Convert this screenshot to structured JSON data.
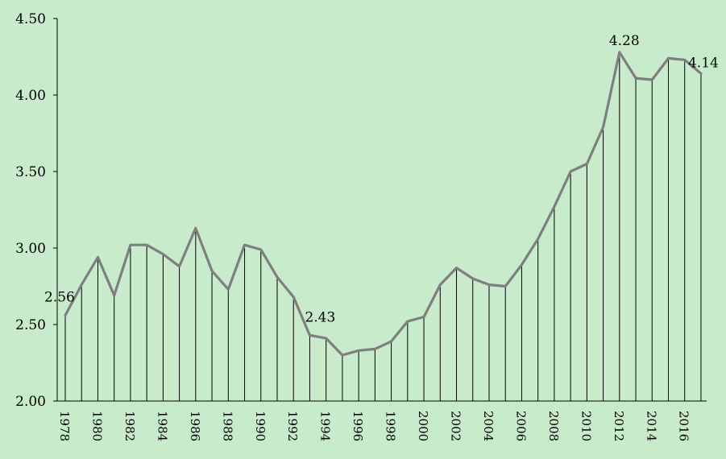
{
  "chart_data": {
    "type": "line",
    "title": "",
    "xlabel": "",
    "ylabel": "",
    "ylim": [
      2.0,
      4.5
    ],
    "yticks": [
      "2.00",
      "2.50",
      "3.00",
      "3.50",
      "4.00",
      "4.50"
    ],
    "x_tick_labels": [
      "1978",
      "1980",
      "1982",
      "1984",
      "1986",
      "1988",
      "1990",
      "1992",
      "1994",
      "1996",
      "1998",
      "2000",
      "2002",
      "2004",
      "2006",
      "2008",
      "2010",
      "2012",
      "2014",
      "2016"
    ],
    "grid": "vertical drop lines from each point to the x-axis",
    "line_color": "#7f7f7f",
    "series": [
      {
        "x": [
          1978,
          1979,
          1980,
          1981,
          1982,
          1983,
          1984,
          1985,
          1986,
          1987,
          1988,
          1989,
          1990,
          1991,
          1992,
          1993,
          1994,
          1995,
          1996,
          1997,
          1998,
          1999,
          2000,
          2001,
          2002,
          2003,
          2004,
          2005,
          2006,
          2007,
          2008,
          2009,
          2010,
          2011,
          2012,
          2013,
          2014,
          2015,
          2016,
          2017
        ],
        "values": [
          2.56,
          2.76,
          2.94,
          2.69,
          3.02,
          3.02,
          2.96,
          2.88,
          3.13,
          2.85,
          2.73,
          3.02,
          2.99,
          2.81,
          2.68,
          2.43,
          2.41,
          2.3,
          2.33,
          2.34,
          2.39,
          2.52,
          2.55,
          2.76,
          2.87,
          2.8,
          2.76,
          2.75,
          2.89,
          3.06,
          3.27,
          3.5,
          3.55,
          3.79,
          4.28,
          4.11,
          4.1,
          4.24,
          4.23,
          4.14
        ]
      }
    ],
    "annotations": [
      {
        "x": 1978,
        "text": "2.56"
      },
      {
        "x": 1993,
        "text": "2.43"
      },
      {
        "x": 2012,
        "text": "4.28"
      },
      {
        "x": 2017,
        "text": "4.14"
      }
    ]
  }
}
